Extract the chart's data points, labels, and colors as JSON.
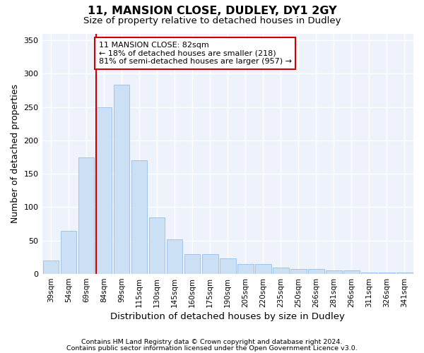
{
  "title1": "11, MANSION CLOSE, DUDLEY, DY1 2GY",
  "title2": "Size of property relative to detached houses in Dudley",
  "xlabel": "Distribution of detached houses by size in Dudley",
  "ylabel": "Number of detached properties",
  "categories": [
    "39sqm",
    "54sqm",
    "69sqm",
    "84sqm",
    "99sqm",
    "115sqm",
    "130sqm",
    "145sqm",
    "160sqm",
    "175sqm",
    "190sqm",
    "205sqm",
    "220sqm",
    "235sqm",
    "250sqm",
    "266sqm",
    "281sqm",
    "296sqm",
    "311sqm",
    "326sqm",
    "341sqm"
  ],
  "values": [
    20,
    65,
    175,
    250,
    283,
    170,
    85,
    52,
    30,
    30,
    23,
    15,
    15,
    10,
    8,
    7,
    5,
    5,
    2,
    2,
    2
  ],
  "bar_color": "#cce0f5",
  "bar_edge_color": "#a0c4e8",
  "vline_color": "#cc0000",
  "annotation_text": "11 MANSION CLOSE: 82sqm\n← 18% of detached houses are smaller (218)\n81% of semi-detached houses are larger (957) →",
  "annotation_box_color": "#ffffff",
  "annotation_box_edge": "#cc0000",
  "background_color": "#eef2fb",
  "grid_color": "#ffffff",
  "footer1": "Contains HM Land Registry data © Crown copyright and database right 2024.",
  "footer2": "Contains public sector information licensed under the Open Government Licence v3.0.",
  "ylim": [
    0,
    360
  ],
  "yticks": [
    0,
    50,
    100,
    150,
    200,
    250,
    300,
    350
  ]
}
